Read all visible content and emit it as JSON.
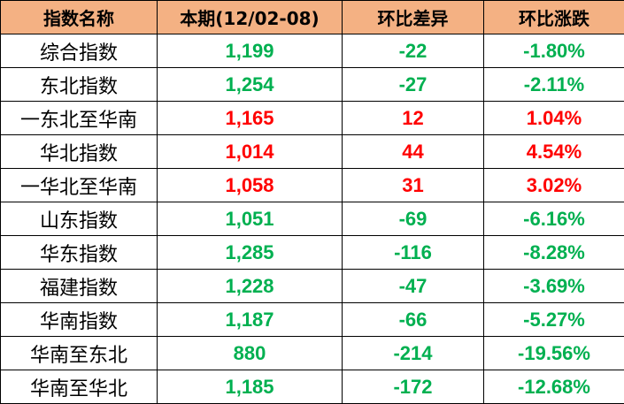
{
  "table": {
    "header": [
      "指数名称",
      "本期(12/02-08)",
      "环比差异",
      "环比涨跌"
    ],
    "rows": [
      [
        "综合指数",
        "1,199",
        "-22",
        "-1.80%"
      ],
      [
        "东北指数",
        "1,254",
        "-27",
        "-2.11%"
      ],
      [
        "一东北至华南",
        "1,165",
        "12",
        "1.04%"
      ],
      [
        "华北指数",
        "1,014",
        "44",
        "4.54%"
      ],
      [
        "一华北至华南",
        "1,058",
        "31",
        "3.02%"
      ],
      [
        "山东指数",
        "1,051",
        "-69",
        "-6.16%"
      ],
      [
        "华东指数",
        "1,285",
        "-116",
        "-8.28%"
      ],
      [
        "福建指数",
        "1,228",
        "-47",
        "-3.69%"
      ],
      [
        "华南指数",
        "1,187",
        "-66",
        "-5.27%"
      ],
      [
        "华南至东北",
        "880",
        "-214",
        "-19.56%"
      ],
      [
        "华南至华北",
        "1,185",
        "-172",
        "-12.68%"
      ]
    ]
  }
}
